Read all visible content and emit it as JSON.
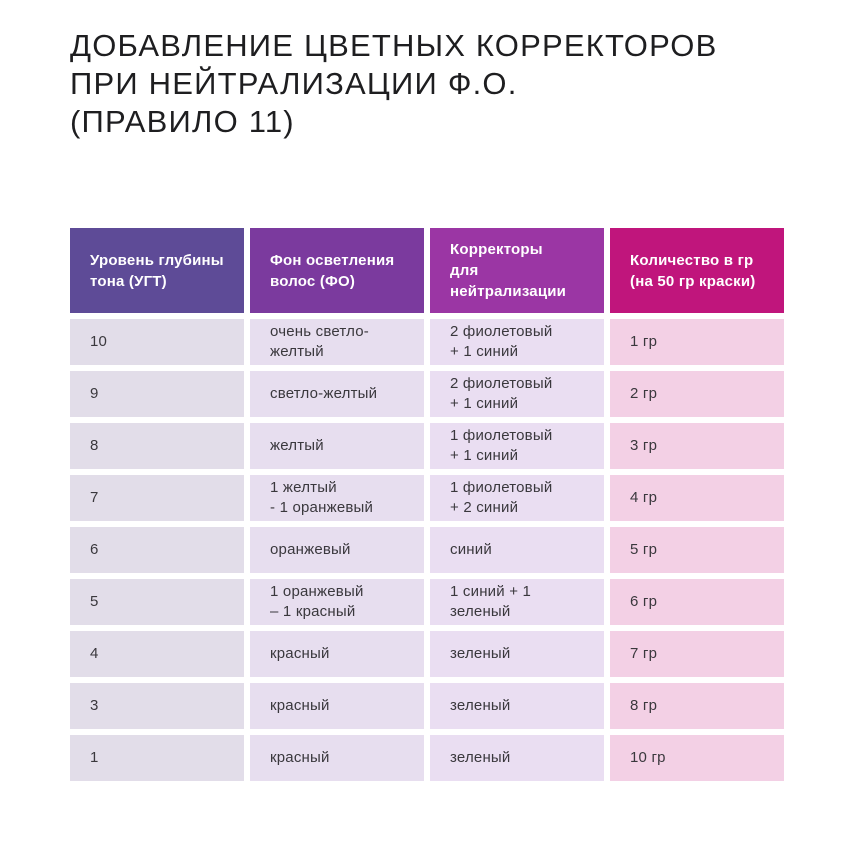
{
  "title": "ДОБАВЛЕНИЕ ЦВЕТНЫХ КОРРЕКТОРОВ\nПРИ НЕЙТРАЛИЗАЦИИ Ф.О.\n(ПРАВИЛО 11)",
  "colors": {
    "header_backgrounds": [
      "#5e4b97",
      "#7b3a9e",
      "#9b36a4",
      "#c0157c"
    ],
    "cell_backgrounds": [
      "#e2dde9",
      "#e7deef",
      "#eadef2",
      "#f3d0e5"
    ],
    "header_text": "#ffffff",
    "cell_text": "#3a383d",
    "title_text": "#1e1e20",
    "page_background": "#ffffff"
  },
  "table": {
    "headers": [
      "Уровень глубины\nтона (УГТ)",
      "Фон осветления\nволос (ФО)",
      "Корректоры\nдля нейтрализации",
      "Количество в гр\n(на 50 гр краски)"
    ],
    "rows": [
      [
        "10",
        "очень светло-желтый",
        "2 фиолетовый\n+ 1 синий",
        "1 гр"
      ],
      [
        "9",
        "светло-желтый",
        "2 фиолетовый\n+ 1 синий",
        "2 гр"
      ],
      [
        "8",
        "желтый",
        "1 фиолетовый\n+ 1 синий",
        "3 гр"
      ],
      [
        "7",
        "1 желтый\n- 1 оранжевый",
        "1 фиолетовый\n+ 2 синий",
        "4 гр"
      ],
      [
        "6",
        "оранжевый",
        "синий",
        "5 гр"
      ],
      [
        "5",
        "1 оранжевый\n– 1 красный",
        "1 синий + 1 зеленый",
        "6 гр"
      ],
      [
        "4",
        "красный",
        "зеленый",
        "7 гр"
      ],
      [
        "3",
        "красный",
        "зеленый",
        "8 гр"
      ],
      [
        "1",
        "красный",
        "зеленый",
        "10 гр"
      ]
    ]
  },
  "chart_data": {
    "type": "table",
    "title": "ДОБАВЛЕНИЕ ЦВЕТНЫХ КОРРЕКТОРОВ ПРИ НЕЙТРАЛИЗАЦИИ Ф.О. (ПРАВИЛО 11)",
    "columns": [
      "Уровень глубины тона (УГТ)",
      "Фон осветления волос (ФО)",
      "Корректоры для нейтрализации",
      "Количество в гр (на 50 гр краски)"
    ],
    "rows": [
      [
        "10",
        "очень светло-желтый",
        "2 фиолетовый + 1 синий",
        "1 гр"
      ],
      [
        "9",
        "светло-желтый",
        "2 фиолетовый + 1 синий",
        "2 гр"
      ],
      [
        "8",
        "желтый",
        "1 фиолетовый + 1 синий",
        "3 гр"
      ],
      [
        "7",
        "1 желтый - 1 оранжевый",
        "1 фиолетовый + 2 синий",
        "4 гр"
      ],
      [
        "6",
        "оранжевый",
        "синий",
        "5 гр"
      ],
      [
        "5",
        "1 оранжевый – 1 красный",
        "1 синий + 1 зеленый",
        "6 гр"
      ],
      [
        "4",
        "красный",
        "зеленый",
        "7 гр"
      ],
      [
        "3",
        "красный",
        "зеленый",
        "8 гр"
      ],
      [
        "1",
        "красный",
        "зеленый",
        "10 гр"
      ]
    ]
  }
}
